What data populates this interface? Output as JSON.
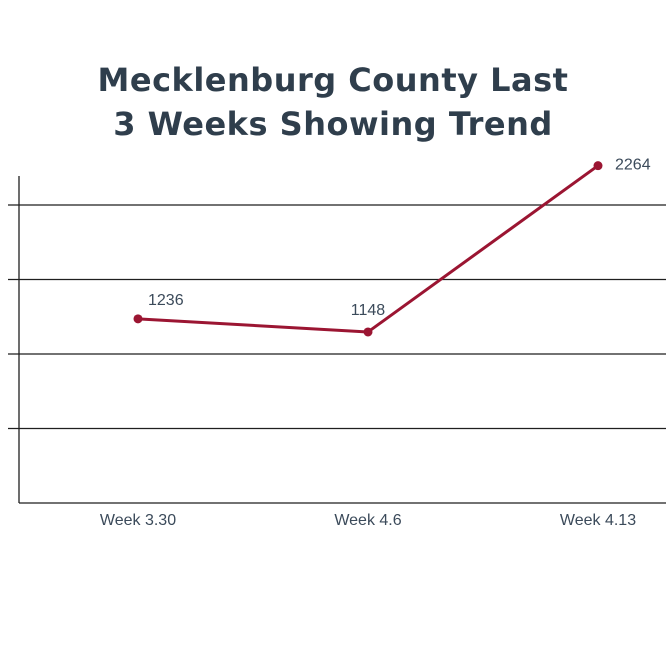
{
  "chart_data": {
    "type": "line",
    "title_lines": [
      "Mecklenburg County Last",
      "3 Weeks Showing Trend"
    ],
    "xlabel": "",
    "ylabel": "",
    "categories": [
      "Week 3.30",
      "Week 4.6",
      "Week 4.13"
    ],
    "series": [
      {
        "values": [
          1236,
          1148,
          2264
        ]
      }
    ],
    "yticks": [
      0,
      500,
      1000,
      1500,
      2000,
      2500
    ],
    "ylim": [
      0,
      2500
    ],
    "grid": true,
    "legend": "none",
    "colors": {
      "line": "#9b1532",
      "grid": "#1f1f1f",
      "axis": "#1f1f1f",
      "text": "#3b4a5a",
      "title": "#2f3e4c"
    }
  }
}
